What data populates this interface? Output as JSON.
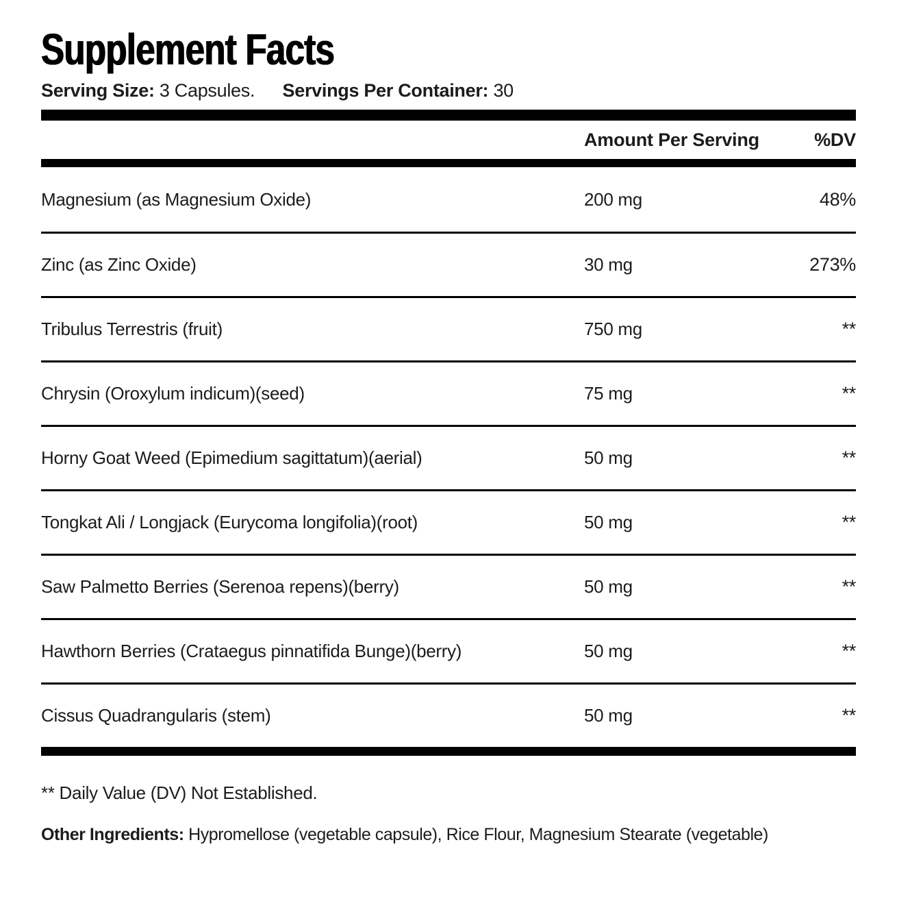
{
  "title": "Supplement Facts",
  "serving": {
    "size_label": "Serving Size:",
    "size_value": "3 Capsules.",
    "per_container_label": "Servings Per Container:",
    "per_container_value": "30"
  },
  "table": {
    "headers": {
      "amount": "Amount Per Serving",
      "dv": "%DV"
    },
    "rows": [
      {
        "name": "Magnesium (as Magnesium Oxide)",
        "amount": "200 mg",
        "dv": "48%"
      },
      {
        "name": "Zinc (as Zinc Oxide)",
        "amount": "30 mg",
        "dv": "273%"
      },
      {
        "name": "Tribulus Terrestris (fruit)",
        "amount": "750 mg",
        "dv": "**"
      },
      {
        "name": "Chrysin (Oroxylum indicum)(seed)",
        "amount": "75 mg",
        "dv": "**"
      },
      {
        "name": "Horny Goat Weed (Epimedium sagittatum)(aerial)",
        "amount": "50 mg",
        "dv": "**"
      },
      {
        "name": "Tongkat Ali / Longjack (Eurycoma longifolia)(root)",
        "amount": "50 mg",
        "dv": "**"
      },
      {
        "name": "Saw Palmetto Berries (Serenoa repens)(berry)",
        "amount": "50 mg",
        "dv": "**"
      },
      {
        "name": "Hawthorn Berries (Crataegus pinnatifida Bunge)(berry)",
        "amount": "50 mg",
        "dv": "**"
      },
      {
        "name": "Cissus Quadrangularis (stem)",
        "amount": "50 mg",
        "dv": "**"
      }
    ]
  },
  "footnotes": {
    "dv_note": "** Daily Value (DV) Not Established.",
    "other_ingredients_label": "Other Ingredients:",
    "other_ingredients_value": "Hypromellose (vegetable capsule), Rice Flour, Magnesium Stearate (vegetable)"
  },
  "colors": {
    "bars": "#000000",
    "text": "#1c1c1c",
    "background": "#ffffff"
  }
}
